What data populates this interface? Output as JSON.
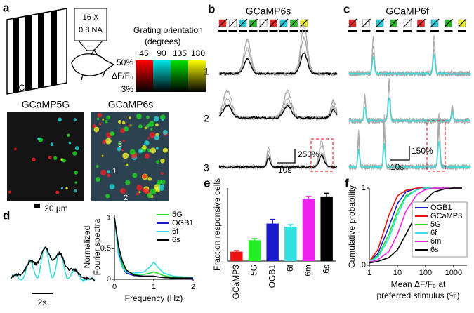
{
  "figure": {
    "panels": [
      "a",
      "b",
      "c",
      "d",
      "e",
      "f"
    ],
    "a": {
      "objective": [
        "16 X",
        "0.8 NA"
      ],
      "display": "LCD",
      "colorbar_title": [
        "Grating orientation",
        "(degrees)"
      ],
      "orientations": [
        "45",
        "90",
        "135",
        "180"
      ],
      "colorbar_max": "50%",
      "colorbar_label": "ΔF/F₀",
      "colorbar_min": "3%",
      "images": [
        "GCaMP5G",
        "GCaMP6s"
      ],
      "cell_labels": [
        "1",
        "2",
        "3"
      ],
      "scale_bar": "20 µm"
    },
    "b": {
      "title": "GCaMP6s",
      "rows": [
        "1",
        "2",
        "3"
      ],
      "scale_y": "250%",
      "scale_x": "10s"
    },
    "c": {
      "title": "GCaMP6f",
      "scale_y": "150%",
      "scale_x": "10s"
    },
    "d": {
      "scale_x": "2s"
    }
  },
  "chart_data": [
    {
      "type": "line",
      "ylabel": [
        "Normalized",
        "Fourier spectra"
      ],
      "xlabel": "Frequency (Hz)",
      "x": [
        0,
        0.1,
        0.2,
        0.3,
        0.5,
        0.75,
        0.9,
        1,
        1.1,
        1.25,
        1.5,
        2
      ],
      "xlim": [
        0,
        2
      ],
      "xticks": [
        0,
        1,
        2
      ],
      "ylim": [
        0,
        1.05
      ],
      "yticks": [
        0,
        0.5,
        1
      ],
      "legend": "upper right",
      "series": [
        {
          "name": "5G",
          "color": "#22dd22",
          "values": [
            1,
            0.5,
            0.25,
            0.13,
            0.08,
            0.08,
            0.1,
            0.12,
            0.1,
            0.06,
            0.03,
            0.02
          ]
        },
        {
          "name": "OGB1",
          "color": "#1a1acc",
          "values": [
            1,
            0.45,
            0.2,
            0.1,
            0.06,
            0.05,
            0.05,
            0.05,
            0.04,
            0.03,
            0.02,
            0.01
          ]
        },
        {
          "name": "6f",
          "color": "#33e0e0",
          "values": [
            1,
            0.4,
            0.2,
            0.12,
            0.1,
            0.12,
            0.2,
            0.28,
            0.2,
            0.1,
            0.05,
            0.03
          ]
        },
        {
          "name": "6s",
          "color": "#000000",
          "values": [
            1,
            0.55,
            0.3,
            0.15,
            0.07,
            0.05,
            0.05,
            0.05,
            0.04,
            0.03,
            0.02,
            0.02
          ]
        }
      ]
    },
    {
      "type": "bar",
      "ylabel": "Fraction responsive cells",
      "categories": [
        "GCaMP3",
        "5G",
        "OGB1",
        "6f",
        "6m",
        "6s"
      ],
      "values": [
        0.09,
        0.2,
        0.36,
        0.33,
        0.6,
        0.62
      ],
      "errors": [
        0.01,
        0.015,
        0.04,
        0.02,
        0.02,
        0.03
      ],
      "colors": [
        "#ee1111",
        "#22ee22",
        "#1a1acc",
        "#33e0e0",
        "#ee22ee",
        "#000000"
      ],
      "ylim": [
        0,
        0.7
      ]
    },
    {
      "type": "line",
      "xscale": "log",
      "ylabel": "Cumulative probability",
      "xlabel": [
        "Mean ΔF/F₀ at",
        "preferred stimulus (%)"
      ],
      "x": [
        1,
        2,
        5,
        10,
        20,
        50,
        100,
        200,
        500,
        1000,
        2000
      ],
      "xlim": [
        1,
        3000
      ],
      "xticks": [
        1,
        10,
        100,
        1000
      ],
      "ylim": [
        0,
        1
      ],
      "yticks": [
        0,
        1
      ],
      "legend": "lower right",
      "series": [
        {
          "name": "OGB1",
          "color": "#1a1acc",
          "values": [
            0.05,
            0.15,
            0.5,
            0.8,
            0.95,
            1,
            1,
            1,
            1,
            1,
            1
          ]
        },
        {
          "name": "GCaMP3",
          "color": "#ee1111",
          "values": [
            0.05,
            0.2,
            0.65,
            0.9,
            0.97,
            1,
            1,
            1,
            1,
            1,
            1
          ]
        },
        {
          "name": "5G",
          "color": "#22dd22",
          "values": [
            0.05,
            0.12,
            0.4,
            0.7,
            0.9,
            0.98,
            1,
            1,
            1,
            1,
            1
          ]
        },
        {
          "name": "6f",
          "color": "#33e0e0",
          "values": [
            0.05,
            0.1,
            0.35,
            0.65,
            0.88,
            0.98,
            1,
            1,
            1,
            1,
            1
          ]
        },
        {
          "name": "6m",
          "color": "#ee22ee",
          "values": [
            0.04,
            0.07,
            0.18,
            0.4,
            0.7,
            0.92,
            0.98,
            1,
            1,
            1,
            1
          ]
        },
        {
          "name": "6s",
          "color": "#000000",
          "values": [
            0.03,
            0.05,
            0.1,
            0.2,
            0.4,
            0.68,
            0.85,
            0.95,
            0.99,
            1,
            1
          ]
        }
      ]
    }
  ]
}
